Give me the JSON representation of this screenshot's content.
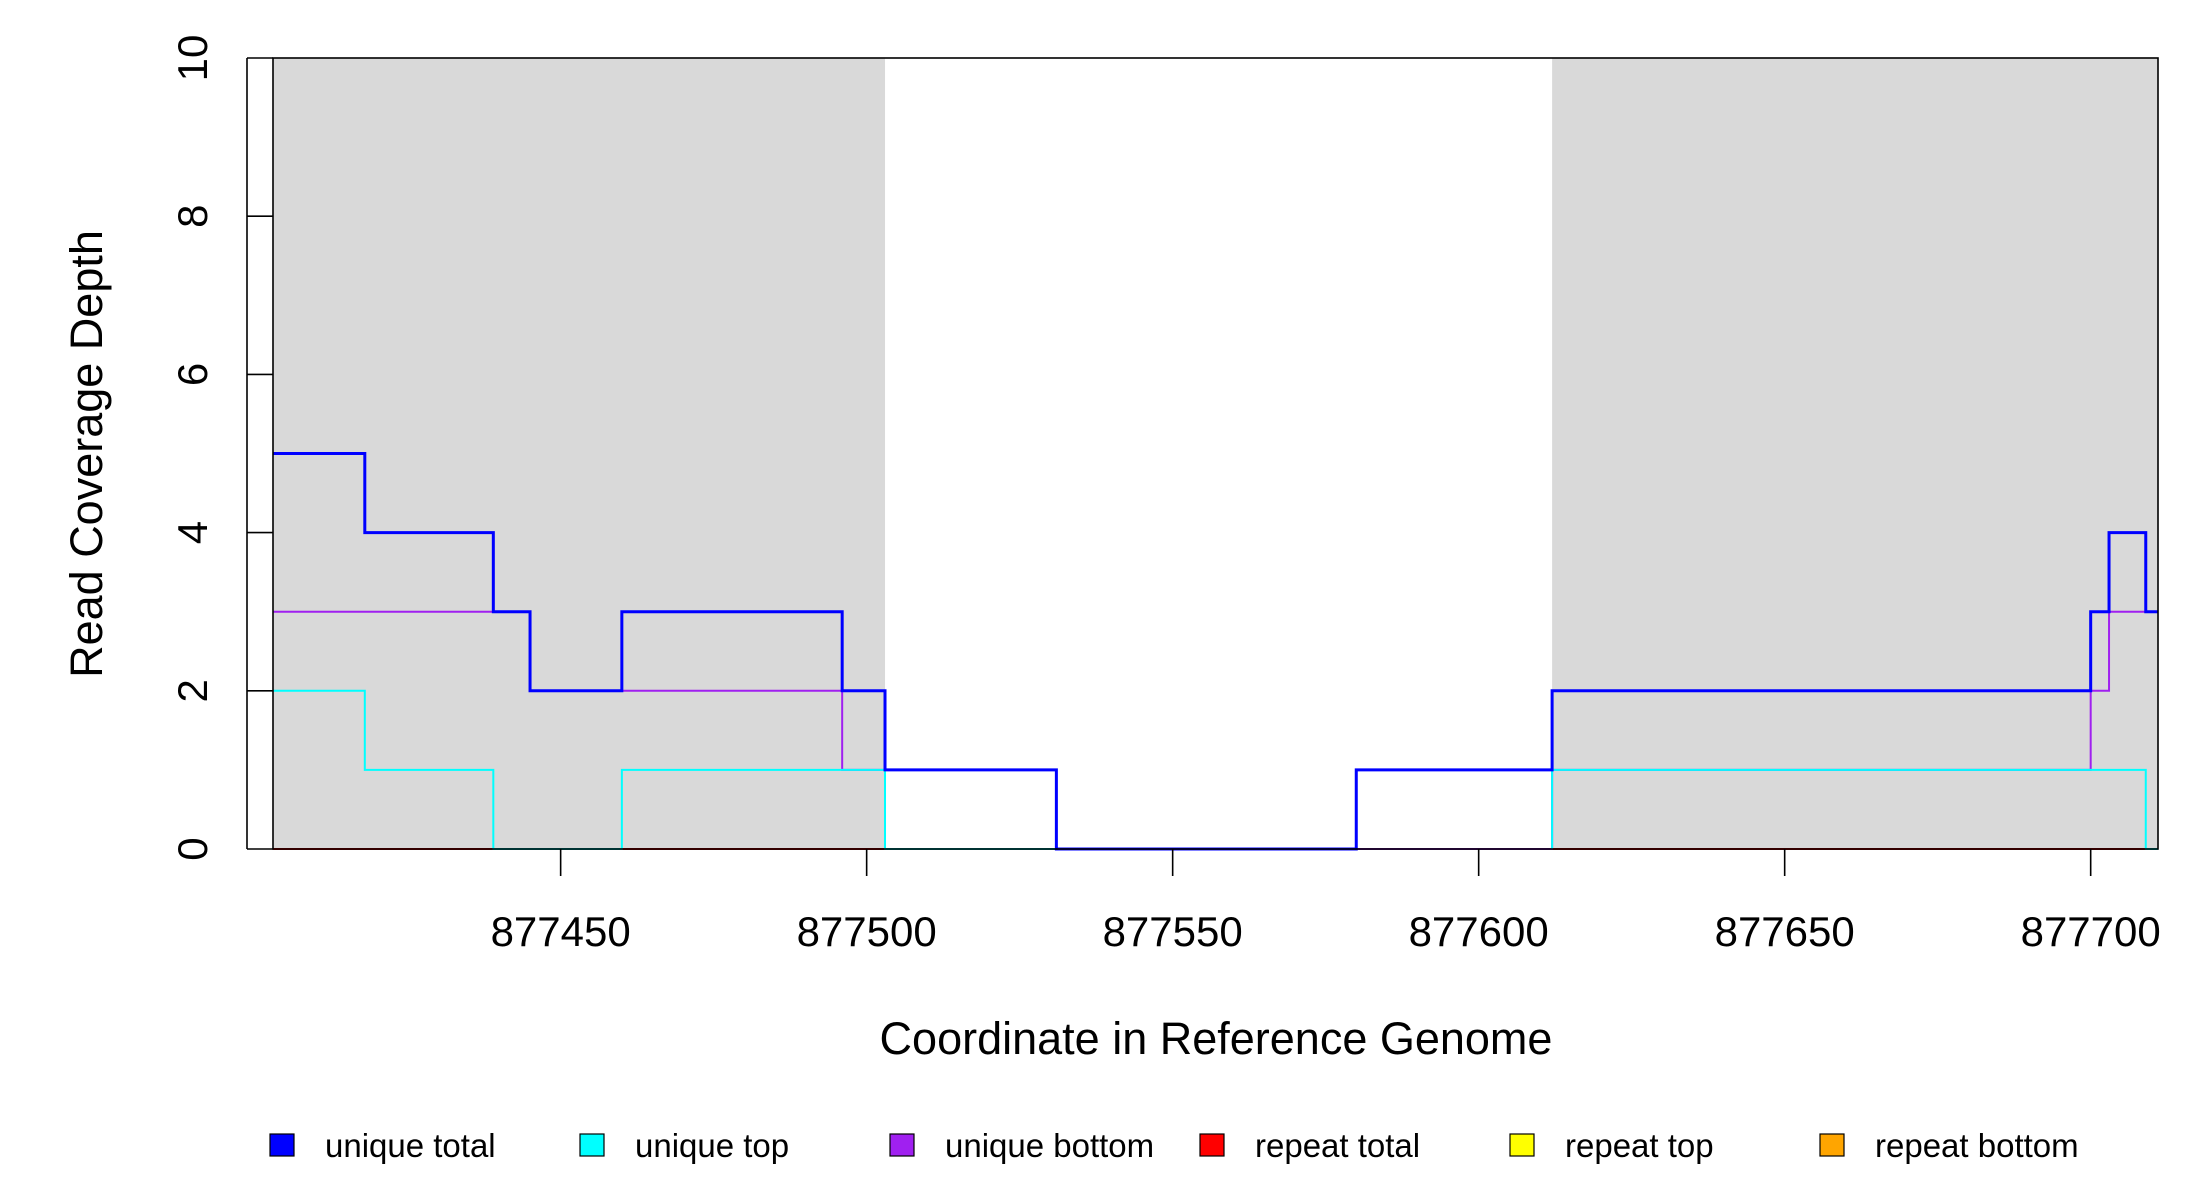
{
  "chart_data": {
    "type": "line",
    "step": true,
    "xlabel": "Coordinate in Reference Genome",
    "ylabel": "Read Coverage Depth",
    "xlim": [
      877403,
      877711
    ],
    "ylim": [
      0,
      10
    ],
    "x_ticks": [
      877450,
      877500,
      877550,
      877600,
      877650,
      877700
    ],
    "y_ticks": [
      0,
      2,
      4,
      6,
      8,
      10
    ],
    "shaded_regions": [
      {
        "from": 877403,
        "to": 877503,
        "color": "#d9d9d9"
      },
      {
        "from": 877612,
        "to": 877711,
        "color": "#d9d9d9"
      }
    ],
    "series": [
      {
        "name": "unique total",
        "color": "#0000ff",
        "points": [
          [
            877403,
            5
          ],
          [
            877418,
            4
          ],
          [
            877439,
            3
          ],
          [
            877445,
            2
          ],
          [
            877460,
            3
          ],
          [
            877496,
            2
          ],
          [
            877503,
            1
          ],
          [
            877531,
            0
          ],
          [
            877580,
            1
          ],
          [
            877612,
            2
          ],
          [
            877700,
            3
          ],
          [
            877703,
            4
          ],
          [
            877709,
            3
          ],
          [
            877711,
            3
          ]
        ]
      },
      {
        "name": "unique top",
        "color": "#00ffff",
        "points": [
          [
            877403,
            2
          ],
          [
            877418,
            1
          ],
          [
            877439,
            0
          ],
          [
            877460,
            1
          ],
          [
            877503,
            0
          ],
          [
            877580,
            1
          ],
          [
            877612,
            0
          ],
          [
            877612,
            1
          ],
          [
            877709,
            0
          ],
          [
            877711,
            0
          ]
        ]
      },
      {
        "name": "unique bottom",
        "color": "#a020f0",
        "points": [
          [
            877403,
            3
          ],
          [
            877445,
            2
          ],
          [
            877496,
            1
          ],
          [
            877531,
            0
          ],
          [
            877580,
            0
          ],
          [
            877612,
            1
          ],
          [
            877700,
            2
          ],
          [
            877703,
            3
          ],
          [
            877711,
            3
          ]
        ]
      },
      {
        "name": "repeat total",
        "color": "#ff0000",
        "points": [
          [
            877403,
            0
          ],
          [
            877711,
            0
          ]
        ]
      },
      {
        "name": "repeat top",
        "color": "#ffff00",
        "points": [
          [
            877403,
            0
          ],
          [
            877711,
            0
          ]
        ]
      },
      {
        "name": "repeat bottom",
        "color": "#ffa500",
        "points": [
          [
            877403,
            0
          ],
          [
            877711,
            0
          ]
        ]
      }
    ],
    "legend": {
      "position": "bottom",
      "entries": [
        {
          "label": "unique total",
          "color": "#0000ff"
        },
        {
          "label": "unique top",
          "color": "#00ffff"
        },
        {
          "label": "unique bottom",
          "color": "#a020f0"
        },
        {
          "label": "repeat total",
          "color": "#ff0000"
        },
        {
          "label": "repeat top",
          "color": "#ffff00"
        },
        {
          "label": "repeat bottom",
          "color": "#ffa500"
        }
      ]
    }
  }
}
